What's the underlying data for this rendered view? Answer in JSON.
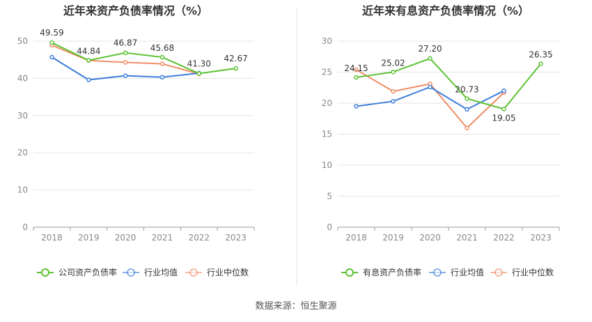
{
  "chart_data": [
    {
      "type": "line",
      "title": "近年来资产负债率情况（%）",
      "categories": [
        "2018",
        "2019",
        "2020",
        "2021",
        "2022",
        "2023"
      ],
      "ylim": [
        0,
        50
      ],
      "yticks": [
        0,
        10,
        20,
        30,
        40,
        50
      ],
      "grid": true,
      "legend_position": "bottom",
      "series": [
        {
          "name": "公司资产负债率",
          "color": "#5cc232",
          "values": [
            49.59,
            44.84,
            46.87,
            45.68,
            41.3,
            42.67
          ],
          "labels": [
            "49.59",
            "44.84",
            "46.87",
            "45.68",
            "41.30",
            "42.67"
          ]
        },
        {
          "name": "行业均值",
          "color": "#3f7fdc",
          "values": [
            45.7,
            39.6,
            40.7,
            40.3,
            41.4,
            null
          ]
        },
        {
          "name": "行业中位数",
          "color": "#f08c64",
          "values": [
            48.9,
            44.8,
            44.3,
            43.9,
            41.2,
            null
          ]
        }
      ]
    },
    {
      "type": "line",
      "title": "近年来有息资产负债率情况（%）",
      "categories": [
        "2018",
        "2019",
        "2020",
        "2021",
        "2022",
        "2023"
      ],
      "ylim": [
        0,
        30
      ],
      "yticks": [
        0,
        5,
        10,
        15,
        20,
        25,
        30
      ],
      "grid": true,
      "legend_position": "bottom",
      "series": [
        {
          "name": "有息资产负债率",
          "color": "#5cc232",
          "values": [
            24.15,
            25.02,
            27.2,
            20.73,
            19.05,
            26.35
          ],
          "labels": [
            "24.15",
            "25.02",
            "27.20",
            "20.73",
            "19.05",
            "26.35"
          ]
        },
        {
          "name": "行业均值",
          "color": "#3f7fdc",
          "values": [
            19.5,
            20.3,
            22.6,
            19.0,
            22.0,
            null
          ]
        },
        {
          "name": "行业中位数",
          "color": "#f08c64",
          "values": [
            25.4,
            21.9,
            23.1,
            16.0,
            21.7,
            null
          ]
        }
      ]
    }
  ],
  "footer": {
    "source": "数据来源：恒生聚源"
  }
}
